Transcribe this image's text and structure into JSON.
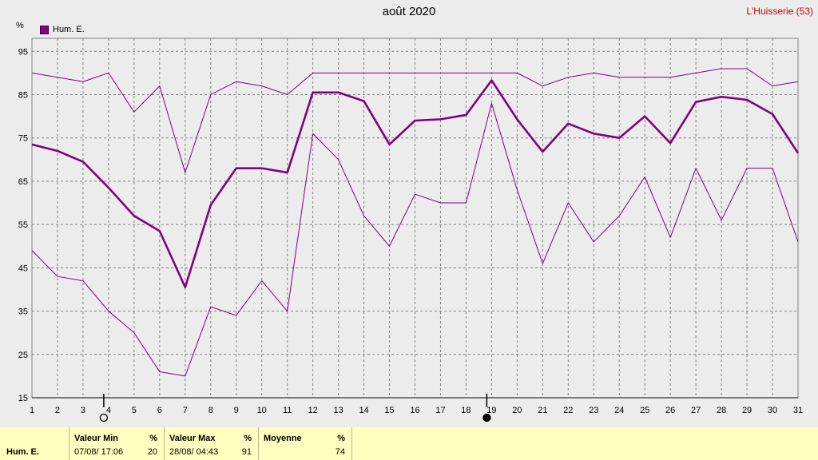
{
  "header": {
    "title": "août 2020",
    "station": "L'Huisserie (53)",
    "unit": "%"
  },
  "colors": {
    "series": "#800080",
    "grid": "#808080",
    "plot_bg": "#ececec",
    "panel_bg": "#ffffc0",
    "station_text": "#c00000"
  },
  "chart_data": {
    "type": "line",
    "ylabel": "%",
    "ylim": [
      15,
      98
    ],
    "yticks": [
      15,
      25,
      35,
      45,
      55,
      65,
      75,
      85,
      95
    ],
    "x": [
      1,
      2,
      3,
      4,
      5,
      6,
      7,
      8,
      9,
      10,
      11,
      12,
      13,
      14,
      15,
      16,
      17,
      18,
      19,
      20,
      21,
      22,
      23,
      24,
      25,
      26,
      27,
      28,
      29,
      30,
      31
    ],
    "xlim": [
      1,
      31
    ],
    "grid": true,
    "legend": {
      "position": "top-left",
      "entries": [
        "Hum. E."
      ]
    },
    "series": [
      {
        "name": "Hum. E.",
        "role": "max",
        "stroke": "thin",
        "values": [
          90,
          89,
          88,
          90,
          81,
          87,
          67,
          85,
          88,
          87,
          85,
          90,
          90,
          90,
          90,
          90,
          90,
          90,
          90,
          90,
          87,
          89,
          90,
          89,
          89,
          89,
          90,
          91,
          91,
          87,
          88
        ]
      },
      {
        "name": "Hum. E.",
        "role": "mean",
        "stroke": "thick",
        "values": [
          73.5,
          72,
          69.5,
          63.5,
          57,
          53.5,
          40.5,
          59.5,
          68,
          68,
          67,
          85.5,
          85.5,
          83.5,
          73.5,
          79,
          79.3,
          80.3,
          88.3,
          79.3,
          71.8,
          78.3,
          76,
          75,
          80,
          73.8,
          83.3,
          84.5,
          83.8,
          80.5,
          71.5
        ]
      },
      {
        "name": "Hum. E.",
        "role": "min",
        "stroke": "thin",
        "values": [
          49,
          43,
          42,
          35,
          30,
          21,
          20,
          36,
          34,
          42,
          35,
          76,
          70,
          57,
          50,
          62,
          60,
          60,
          83,
          63,
          46,
          60,
          51,
          57,
          66,
          52,
          68,
          56,
          68,
          68,
          51
        ]
      }
    ],
    "moon_markers": [
      {
        "day": 4,
        "phase": "full"
      },
      {
        "day": 19,
        "phase": "new"
      }
    ]
  },
  "stats": {
    "row_label": "Hum. E.",
    "min": {
      "header": "Valeur Min",
      "unit": "%",
      "datetime": "07/08/  17:06",
      "value": "20"
    },
    "max": {
      "header": "Valeur Max",
      "unit": "%",
      "datetime": "28/08/  04:43",
      "value": "91"
    },
    "mean": {
      "header": "Moyenne",
      "unit": "%",
      "value": "74"
    }
  }
}
